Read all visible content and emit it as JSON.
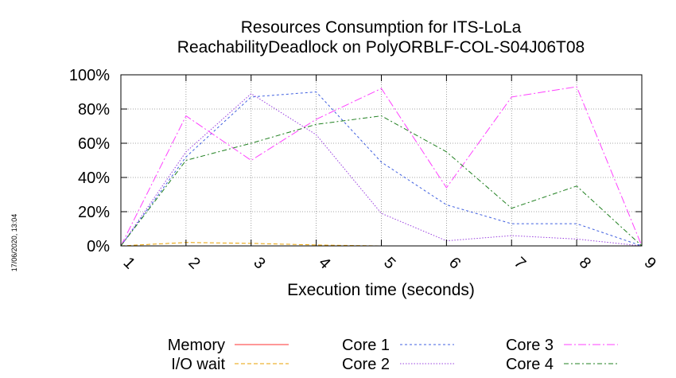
{
  "timestamp": "17/06/2020, 13:04",
  "chart_data": {
    "type": "line",
    "title": "Resources Consumption for ITS-LoLa",
    "subtitle": "ReachabilityDeadlock on PolyORBLF-COL-S04J06T08",
    "xlabel": "Execution time (seconds)",
    "ylabel": "",
    "x": [
      1,
      2,
      3,
      4,
      5,
      6,
      7,
      8,
      9
    ],
    "xlim": [
      1,
      9
    ],
    "ylim": [
      0,
      100
    ],
    "x_ticks": [
      "1",
      "2",
      "3",
      "4",
      "5",
      "6",
      "7",
      "8",
      "9"
    ],
    "y_ticks": [
      "0%",
      "20%",
      "40%",
      "60%",
      "80%",
      "100%"
    ],
    "y_tick_values": [
      0,
      20,
      40,
      60,
      80,
      100
    ],
    "grid": true,
    "legend_position": "bottom",
    "series": [
      {
        "name": "Memory",
        "color": "#ff3030",
        "dash": "solid",
        "values": [
          0,
          0,
          0,
          0,
          0,
          0,
          0,
          0,
          0
        ]
      },
      {
        "name": "I/O wait",
        "color": "#e8a000",
        "dash": "dashed",
        "values": [
          0,
          2,
          1.5,
          0.5,
          0,
          0,
          0,
          0,
          0
        ]
      },
      {
        "name": "Core 1",
        "color": "#4060e0",
        "dash": "dashed-fine",
        "values": [
          0,
          52,
          87,
          90,
          49,
          24,
          13,
          13,
          0
        ]
      },
      {
        "name": "Core 2",
        "color": "#9a40e0",
        "dash": "dotted",
        "values": [
          0,
          55,
          89,
          65,
          19,
          3,
          6,
          4,
          0
        ]
      },
      {
        "name": "Core 3",
        "color": "#ff40ff",
        "dash": "dashdot",
        "values": [
          0,
          76,
          50,
          74,
          92,
          34,
          87,
          93,
          0
        ]
      },
      {
        "name": "Core 4",
        "color": "#208020",
        "dash": "dashdot2",
        "values": [
          0,
          50,
          60,
          71,
          76,
          55,
          22,
          35,
          0
        ]
      }
    ]
  }
}
